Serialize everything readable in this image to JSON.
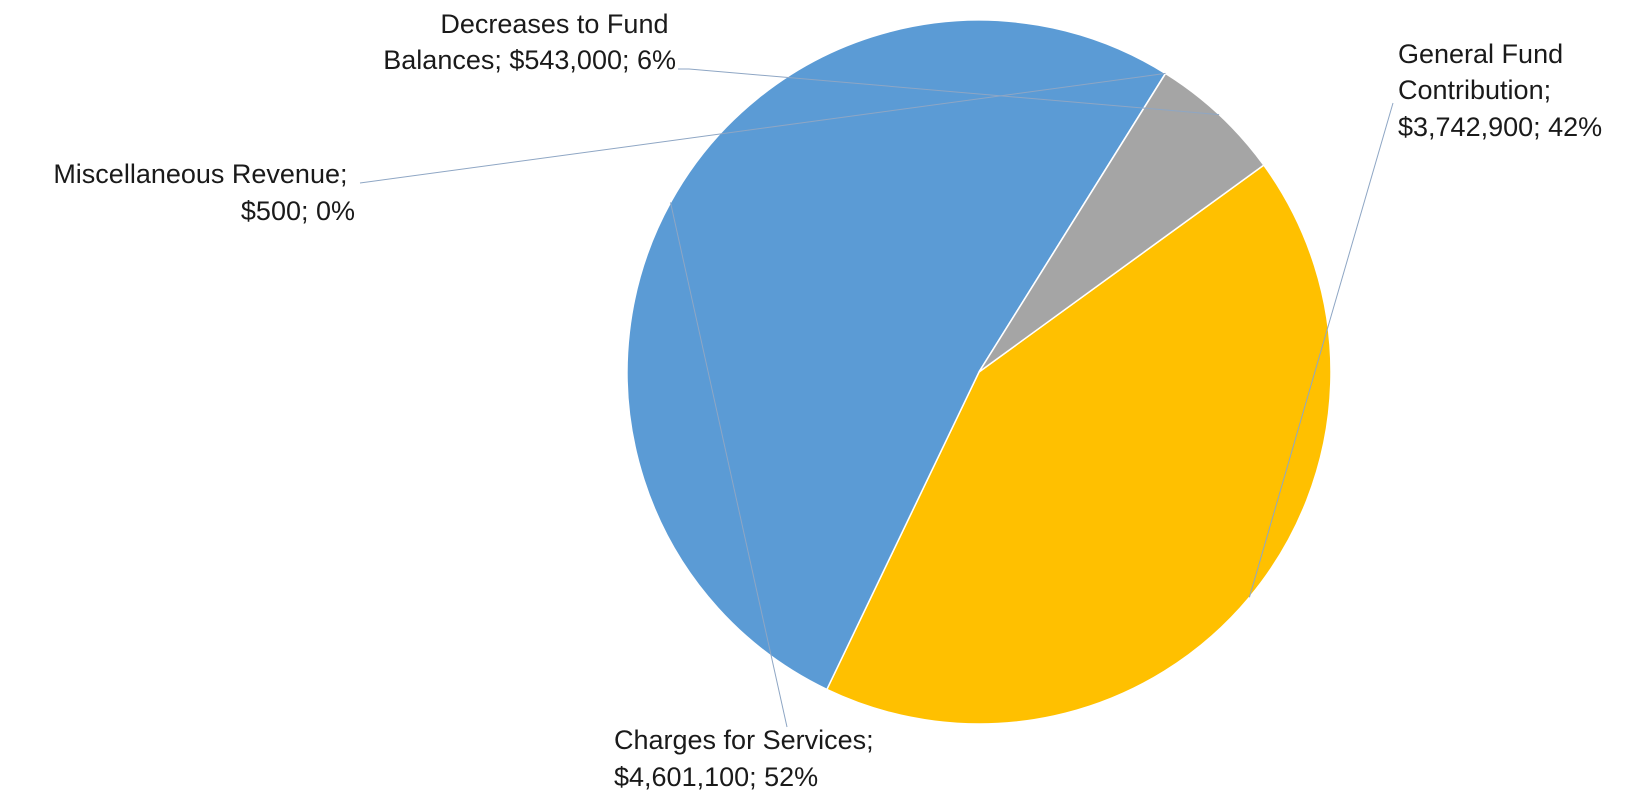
{
  "chart_data": {
    "type": "pie",
    "title": "",
    "categories": [
      "General Fund Contribution",
      "Charges for Services",
      "Miscellaneous Revenue",
      "Decreases to Fund Balances"
    ],
    "values": [
      3742900,
      4601100,
      500,
      543000
    ],
    "percents": [
      42,
      52,
      0,
      6
    ],
    "colors": [
      "#FFC000",
      "#5B9BD5",
      "#A5A5A5",
      "#A5A5A5"
    ],
    "start_angle_deg": 54,
    "direction": "clockwise",
    "legend": "none",
    "labels": [
      {
        "lines": [
          "General Fund",
          "Contribution;",
          "$3,742,900; 42%"
        ]
      },
      {
        "lines": [
          "Charges for Services;",
          "$4,601,100; 52%"
        ]
      },
      {
        "lines": [
          "Miscellaneous Revenue;",
          "$500; 0%"
        ]
      },
      {
        "lines": [
          "Decreases to Fund",
          "Balances; $543,000; 6%"
        ]
      }
    ]
  }
}
